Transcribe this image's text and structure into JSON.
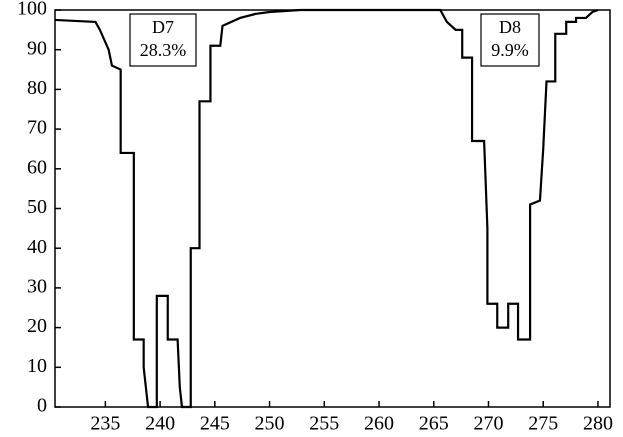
{
  "chart_data": {
    "type": "line",
    "x": [
      230.4,
      234.1,
      234.5,
      235.3,
      235.6,
      236.4,
      236.4,
      237.6,
      237.6,
      238.5,
      238.5,
      238.9,
      239.7,
      239.7,
      240.7,
      240.7,
      241.6,
      241.8,
      242.0,
      242.8,
      242.8,
      243.6,
      243.6,
      244.6,
      244.6,
      245.5,
      245.7,
      247.3,
      248.7,
      250.0,
      252.8,
      265.6,
      266.2,
      267.0,
      267.6,
      267.6,
      268.5,
      268.5,
      269.6,
      269.9,
      269.9,
      270.8,
      270.8,
      271.8,
      271.8,
      272.7,
      272.7,
      273.8,
      273.8,
      274.7,
      275.0,
      275.3,
      276.1,
      276.1,
      277.1,
      277.1,
      278.0,
      278.0,
      278.9,
      279.5,
      280.0
    ],
    "series": [
      {
        "color": "#000000",
        "values": [
          97.5,
          97,
          95,
          90,
          86,
          85,
          64,
          64,
          17,
          17,
          10,
          0,
          0,
          28,
          28,
          17,
          17,
          5,
          0,
          0,
          40,
          40,
          77,
          77,
          91,
          91,
          96,
          98,
          99,
          99.5,
          100,
          100,
          97,
          95,
          95,
          88,
          88,
          67,
          67,
          45,
          26,
          26,
          20,
          20,
          26,
          26,
          17,
          17,
          51,
          52,
          65,
          82,
          82,
          94,
          94,
          97,
          97,
          98,
          98,
          99.5,
          100
        ]
      }
    ],
    "xlim": [
      230.4,
      281.1
    ],
    "ylim": [
      0,
      100
    ],
    "xticks": [
      235,
      240,
      245,
      250,
      255,
      260,
      265,
      270,
      275,
      280
    ],
    "yticks": [
      0,
      10,
      20,
      30,
      40,
      50,
      60,
      70,
      80,
      90,
      100
    ],
    "annotations": [
      {
        "label": "D7",
        "percent": "28.3%"
      },
      {
        "label": "D8",
        "percent": "9.9%"
      }
    ]
  }
}
